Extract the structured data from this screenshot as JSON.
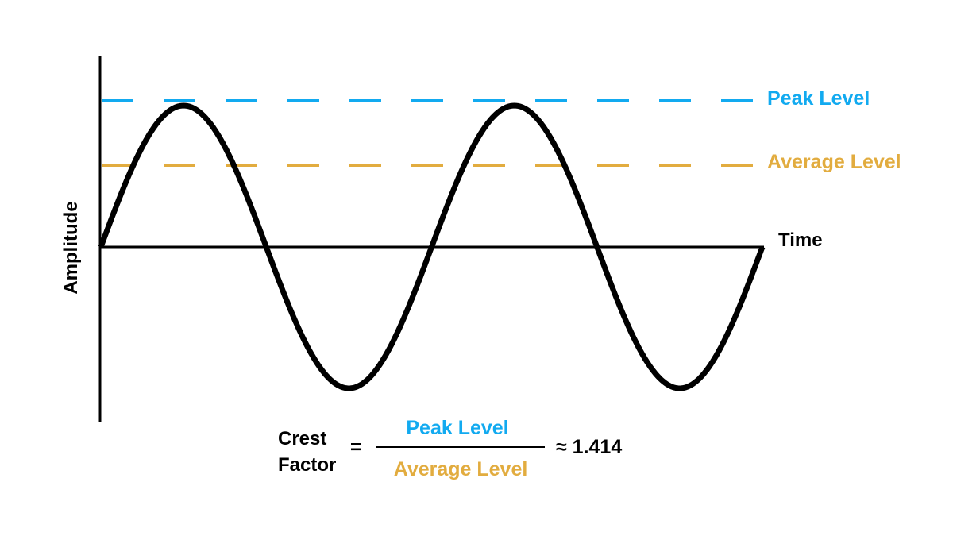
{
  "colors": {
    "peak": "#12aaf0",
    "average": "#e2ac3f",
    "ink": "#000000"
  },
  "axes": {
    "y_label": "Amplitude",
    "x_label": "Time"
  },
  "reference_lines": {
    "peak_label": "Peak Level",
    "average_label": "Average Level"
  },
  "formula": {
    "term_line1": "Crest",
    "term_line2": "Factor",
    "equals": "=",
    "numerator": "Peak Level",
    "denominator": "Average Level",
    "result": "≈ 1.414"
  },
  "waveform": {
    "type": "sine",
    "cycles": 2,
    "peak_amplitude": 1.0,
    "average_level": 0.707
  }
}
